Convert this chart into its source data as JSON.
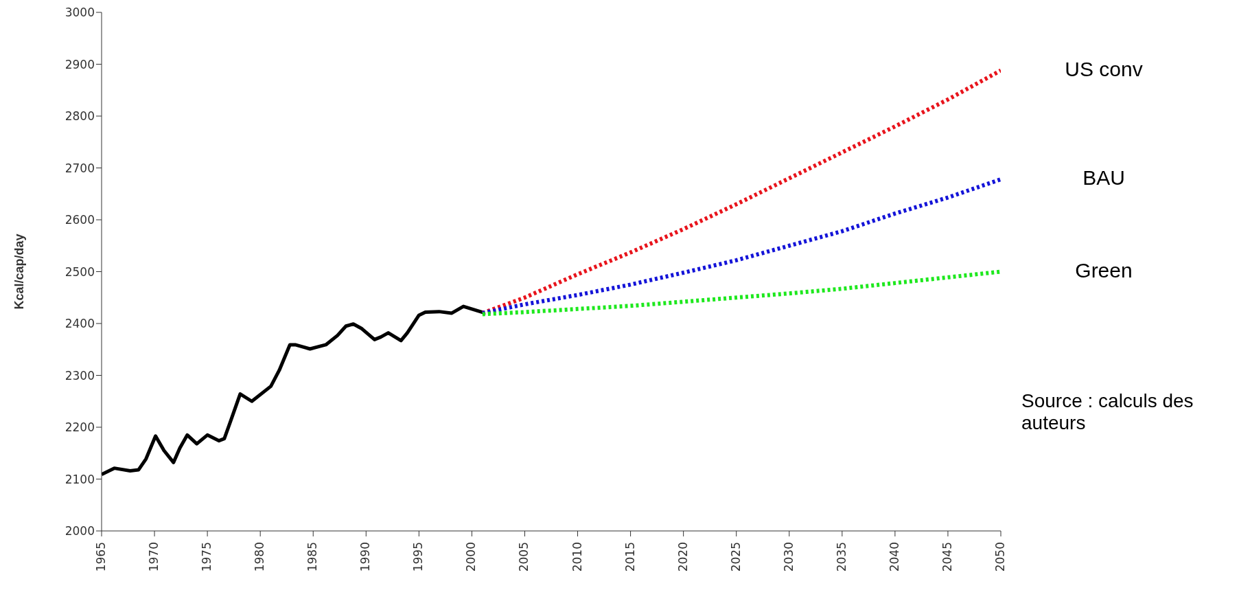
{
  "chart_data": {
    "type": "line",
    "ylabel": "Kcal/cap/day",
    "xlim": [
      1965,
      2050
    ],
    "xticks": [
      1965,
      1970,
      1975,
      1980,
      1985,
      1990,
      1995,
      2000,
      2005,
      2010,
      2015,
      2020,
      2025,
      2030,
      2035,
      2040,
      2045,
      2050
    ],
    "ylim": [
      2000,
      3000
    ],
    "yticks": [
      2000,
      2100,
      2200,
      2300,
      2400,
      2500,
      2600,
      2700,
      2800,
      2900,
      3000
    ],
    "grid": false,
    "legend": false,
    "marker": "none",
    "series": [
      {
        "color": "#000000",
        "line_style": "solid",
        "x": [
          1965,
          1966.2,
          1967.7,
          1968.5,
          1969.2,
          1970.1,
          1970.9,
          1971.8,
          1972.4,
          1973.1,
          1974,
          1975,
          1976.1,
          1976.6,
          1977.2,
          1978.1,
          1979.2,
          1981,
          1981.8,
          1982.8,
          1983.3,
          1984.7,
          1986.2,
          1987.3,
          1988.1,
          1988.8,
          1989.6,
          1990.8,
          1991.4,
          1992.1,
          1993.3,
          1993.9,
          1995,
          1995.6,
          1996.9,
          1998.1,
          1999.2,
          2001.1
        ],
        "values": [
          2109,
          2121,
          2116,
          2118,
          2139,
          2183,
          2155,
          2132,
          2160,
          2185,
          2168,
          2185,
          2174,
          2178,
          2212,
          2264,
          2250,
          2279,
          2310,
          2359,
          2359,
          2351,
          2359,
          2377,
          2395,
          2399,
          2390,
          2369,
          2374,
          2382,
          2367,
          2382,
          2416,
          2422,
          2423,
          2420,
          2433,
          2421
        ]
      },
      {
        "name": "US conv",
        "color": "#e8141c",
        "line_style": "dotted",
        "x": [
          2001,
          2005,
          2010,
          2015,
          2020,
          2025,
          2030,
          2035,
          2040,
          2045,
          2050
        ],
        "values": [
          2420,
          2450,
          2495,
          2537,
          2582,
          2630,
          2680,
          2730,
          2780,
          2832,
          2888
        ]
      },
      {
        "name": "BAU",
        "color": "#1414d8",
        "line_style": "dotted",
        "x": [
          2001,
          2005,
          2010,
          2015,
          2020,
          2025,
          2030,
          2035,
          2040,
          2045,
          2050
        ],
        "values": [
          2420,
          2437,
          2455,
          2475,
          2498,
          2522,
          2550,
          2578,
          2612,
          2643,
          2678
        ]
      },
      {
        "name": "Green",
        "color": "#1ee81e",
        "line_style": "dotted",
        "x": [
          2001,
          2005,
          2010,
          2015,
          2020,
          2025,
          2030,
          2035,
          2040,
          2045,
          2050
        ],
        "values": [
          2418,
          2422,
          2428,
          2434,
          2442,
          2450,
          2458,
          2467,
          2478,
          2489,
          2500
        ]
      }
    ],
    "annotations": [
      "Source : calculs des auteurs"
    ]
  }
}
